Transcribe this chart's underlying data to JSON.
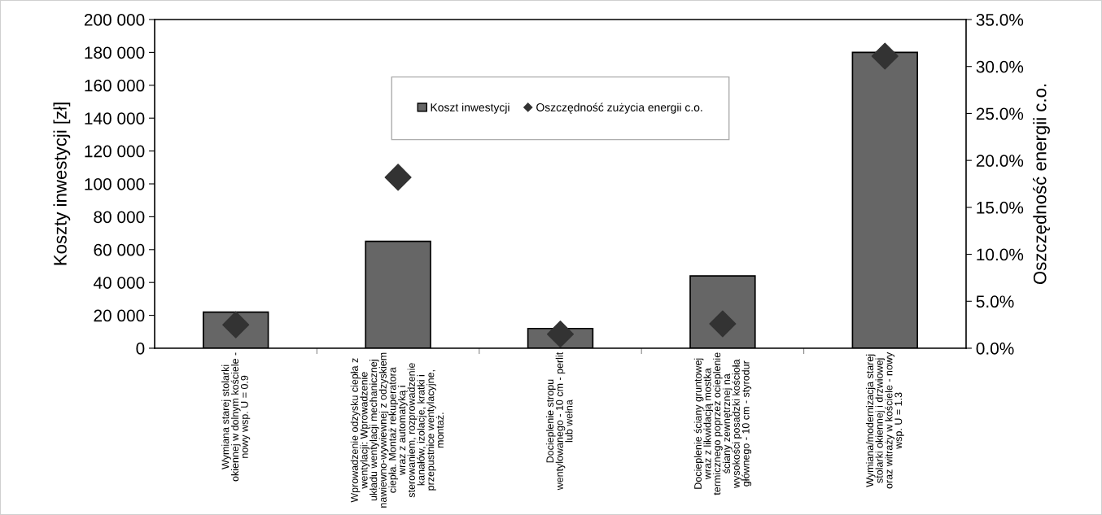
{
  "chart_data": {
    "type": "bar",
    "xlabel": null,
    "ylabel": "Koszty inwestycji [zł]",
    "y2label": "Oszczędność energii c.o.",
    "categories": [
      "Wymiana starej stolarki okiennej w dolnym kościele - nowy wsp. U = 0.9",
      "Wprowadzenie odzysku ciepła z wentylacji: Wprowadzenie układu wentylacji mechanicznej nawiewno-wywiewnej z odzyskiem ciepła. Montaż rekuperatora wraz z automatyką i sterowaniem, rozprowadzenie kanałów, izolacje, kratki i przepustnice wentylacyjne, montaż.",
      "Docieplenie stropu wentylowanego - 10 cm - perlit lub wełna",
      "Docieplenie ściany gruntowej wraz z likwidacją mostka termicznego poprzez ocieplenie ściany zewnętrznej na wysokości posadzki kościoła głównego - 10 cm - styrodur",
      "Wymiana/modernizacja starej stolarki okiennej i drzwiowej oraz witraży w kościele - nowy wsp. U = 1.3"
    ],
    "series": [
      {
        "name": "Koszt inwestycji",
        "color": "#666666",
        "values": [
          22000,
          65000,
          12000,
          44000,
          180000
        ]
      },
      {
        "name": "Oszczędność zużycia energii c.o.",
        "type": "scatter",
        "axis": "y2",
        "marker": "diamond",
        "color": "#333333",
        "values": [
          2.5,
          18.2,
          1.5,
          2.6,
          31.1
        ]
      }
    ],
    "ylim": [
      0,
      200000
    ],
    "yticks": [
      {
        "value": 0,
        "label": "0"
      },
      {
        "value": 20000,
        "label": "20 000"
      },
      {
        "value": 40000,
        "label": "40 000"
      },
      {
        "value": 60000,
        "label": "60 000"
      },
      {
        "value": 80000,
        "label": "80 000"
      },
      {
        "value": 100000,
        "label": "100 000"
      },
      {
        "value": 120000,
        "label": "120 000"
      },
      {
        "value": 140000,
        "label": "140 000"
      },
      {
        "value": 160000,
        "label": "160 000"
      },
      {
        "value": 180000,
        "label": "180 000"
      },
      {
        "value": 200000,
        "label": "200 000"
      }
    ],
    "y2lim": [
      0,
      35
    ],
    "y2ticks": [
      {
        "value": 0,
        "label": "0.0%"
      },
      {
        "value": 5,
        "label": "5.0%"
      },
      {
        "value": 10,
        "label": "10.0%"
      },
      {
        "value": 15,
        "label": "15.0%"
      },
      {
        "value": 20,
        "label": "20.0%"
      },
      {
        "value": 25,
        "label": "25.0%"
      },
      {
        "value": 30,
        "label": "30.0%"
      },
      {
        "value": 35,
        "label": "35.0%"
      }
    ],
    "legend": "top",
    "grid": false
  }
}
